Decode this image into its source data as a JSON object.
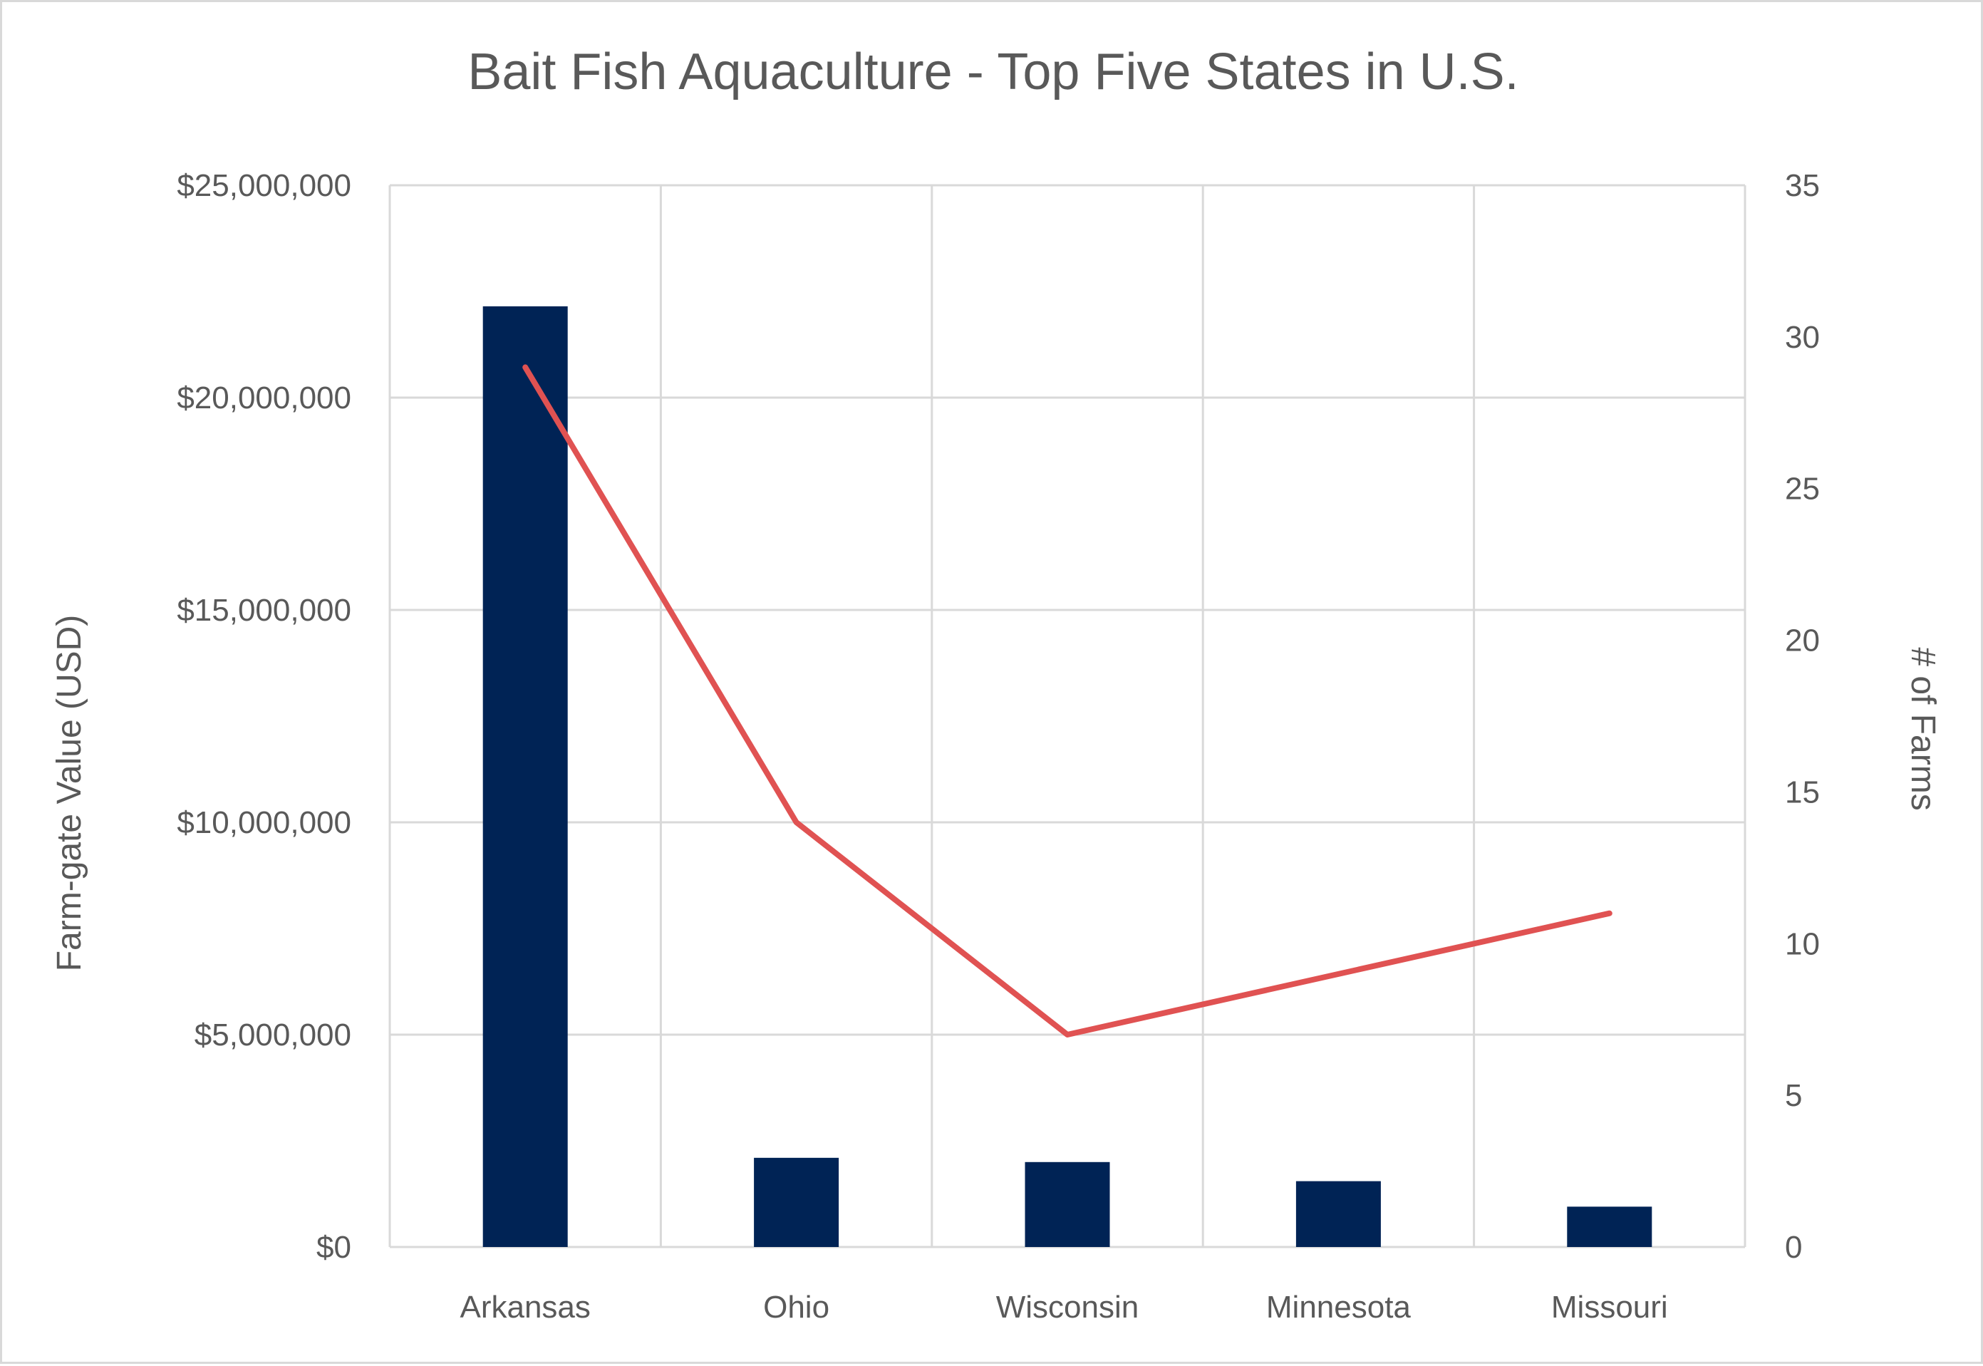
{
  "chart_data": {
    "type": "bar+line",
    "title": "Bait Fish Aquaculture - Top Five States in U.S.",
    "categories": [
      "Arkansas",
      "Ohio",
      "Wisconsin",
      "Minnesota",
      "Missouri"
    ],
    "series": [
      {
        "name": "",
        "type": "bar",
        "axis": "left",
        "color": "#002355",
        "values": [
          22150000,
          2100000,
          2000000,
          1550000,
          950000
        ]
      },
      {
        "name": "",
        "type": "line",
        "axis": "right",
        "color": "#e05252",
        "values": [
          29,
          14,
          7,
          9,
          11
        ]
      }
    ],
    "y_left": {
      "label": "Farm-gate Value (USD)",
      "ylim": [
        0,
        25000000
      ],
      "ticks": [
        0,
        5000000,
        10000000,
        15000000,
        20000000,
        25000000
      ],
      "tick_labels": [
        "$0",
        "$5,000,000",
        "$10,000,000",
        "$15,000,000",
        "$20,000,000",
        "$25,000,000"
      ]
    },
    "y_right": {
      "label": "# of Farms",
      "ylim": [
        0,
        35
      ],
      "ticks": [
        0,
        5,
        10,
        15,
        20,
        25,
        30,
        35
      ],
      "tick_labels": [
        "0",
        "5",
        "10",
        "15",
        "20",
        "25",
        "30",
        "35"
      ]
    },
    "grid": true,
    "legend": "none"
  }
}
